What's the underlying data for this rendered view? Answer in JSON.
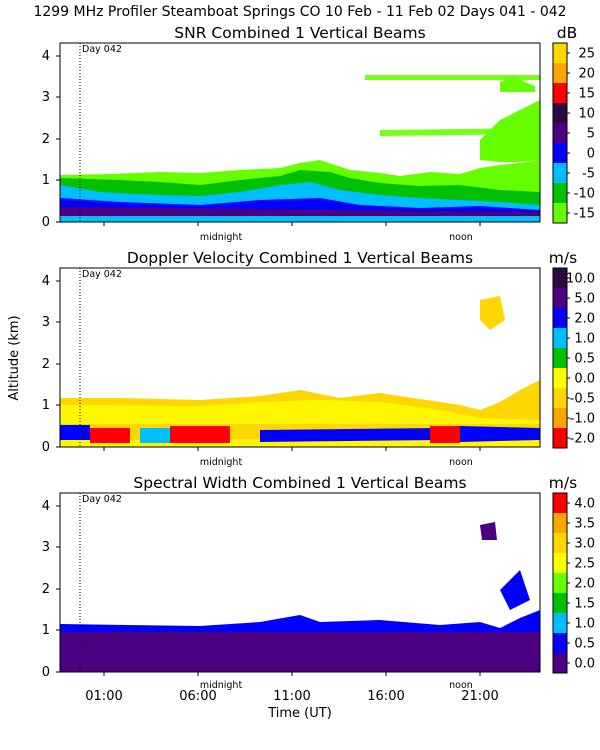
{
  "header": {
    "title": "1299 MHz Profiler  Steamboat Springs CO  10 Feb - 11 Feb 02 Days 041 - 042"
  },
  "chart_data": [
    {
      "type": "heatmap",
      "title": "SNR Combined 1 Vertical Beams",
      "colorbar_unit": "dB",
      "colorbar_ticks": [
        "25",
        "20",
        "15",
        "10",
        "5",
        "0",
        "-5",
        "-10",
        "-15"
      ],
      "colorbar_colors": [
        "#ffd700",
        "#ffa500",
        "#ff0000",
        "#2b0a3d",
        "#4b0082",
        "#0000ff",
        "#00bfff",
        "#00c000",
        "#66ff00"
      ],
      "yticks": [
        "4",
        "3",
        "2",
        "1",
        "0"
      ],
      "ylim": [
        0,
        4.2
      ],
      "day_marker": "Day 042",
      "annotations": {
        "midnight": "midnight",
        "noon": "noon"
      }
    },
    {
      "type": "heatmap",
      "title": "Doppler Velocity Combined 1 Vertical Beams",
      "colorbar_unit": "m/s",
      "colorbar_ticks": [
        "10.0",
        "5.0",
        "2.0",
        "1.0",
        "0.5",
        "0.0",
        "-0.5",
        "-1.0",
        "-2.0"
      ],
      "colorbar_colors": [
        "#2b0a3d",
        "#4b0082",
        "#0000ff",
        "#00bfff",
        "#00c000",
        "#ffff00",
        "#ffd700",
        "#ffa500",
        "#ff0000"
      ],
      "yticks": [
        "4",
        "3",
        "2",
        "1",
        "0"
      ],
      "ylim": [
        0,
        4.2
      ],
      "ylabel": "Altitude (km)",
      "day_marker": "Day 042",
      "annotations": {
        "midnight": "midnight",
        "noon": "noon"
      }
    },
    {
      "type": "heatmap",
      "title": "Spectral Width Combined 1 Vertical Beams",
      "colorbar_unit": "m/s",
      "colorbar_ticks": [
        "4.0",
        "3.5",
        "3.0",
        "2.5",
        "2.0",
        "1.5",
        "1.0",
        "0.5",
        "0.0"
      ],
      "colorbar_colors": [
        "#ff0000",
        "#ffa500",
        "#ffd700",
        "#ffff00",
        "#66ff00",
        "#00c000",
        "#00bfff",
        "#0000ff",
        "#4b0082"
      ],
      "yticks": [
        "4",
        "3",
        "2",
        "1",
        "0"
      ],
      "ylim": [
        0,
        4.2
      ],
      "day_marker": "Day 042",
      "annotations": {
        "midnight": "midnight",
        "noon": "noon"
      },
      "xticks": [
        "01:00",
        "06:00",
        "11:00",
        "16:00",
        "21:00"
      ],
      "xlabel": "Time (UT)"
    }
  ]
}
